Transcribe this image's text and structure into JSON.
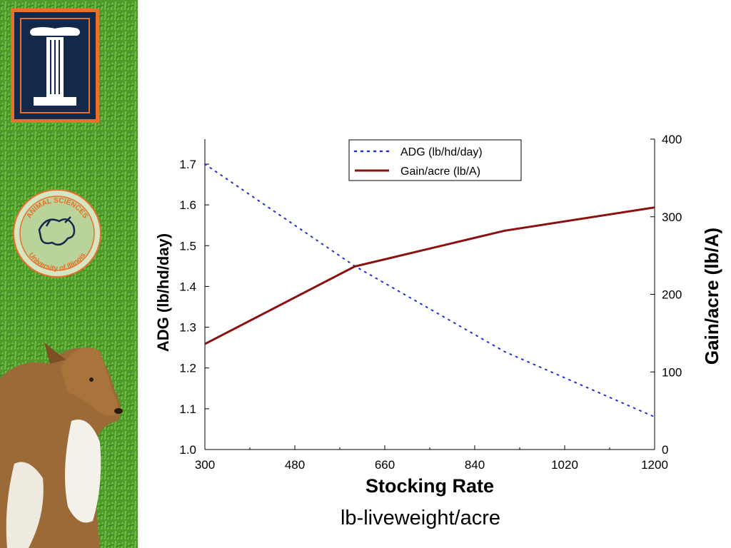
{
  "sidebar": {
    "logo_icon": "illinois-block-i-logo",
    "seal_icon": "animal-sciences-seal",
    "seal_text_top": "ANIMAL SCIENCES",
    "seal_text_bottom": "University of Illinois",
    "photo_icon": "dog-on-grass-photo"
  },
  "chart_data": {
    "type": "line",
    "x": [
      300,
      600,
      900,
      1200
    ],
    "xlim": [
      300,
      1200
    ],
    "xticks": [
      300,
      480,
      660,
      840,
      1020,
      1200
    ],
    "xlabel": "Stocking Rate",
    "xlabel_sub": "lb-liveweight/acre",
    "y_left": {
      "label": "ADG (lb/hd/day)",
      "lim": [
        1.0,
        1.76
      ],
      "ticks": [
        "1.0",
        "1.1",
        "1.2",
        "1.3",
        "1.4",
        "1.5",
        "1.6",
        "1.7"
      ]
    },
    "y_right": {
      "label": "Gain/acre (lb/A)",
      "lim": [
        0,
        400
      ],
      "ticks": [
        "0",
        "100",
        "200",
        "300",
        "400"
      ]
    },
    "series": [
      {
        "name": "ADG (lb/hd/day)",
        "axis": "left",
        "style": "dotted",
        "color": "#1f2fd6",
        "x": [
          300,
          600,
          900,
          1200
        ],
        "values": [
          1.7,
          1.45,
          1.24,
          1.08
        ]
      },
      {
        "name": "Gain/acre (lb/A)",
        "axis": "right",
        "style": "solid",
        "color": "#8b1010",
        "x": [
          300,
          600,
          900,
          1200
        ],
        "values": [
          136,
          236,
          282,
          312
        ]
      }
    ],
    "legend": "top-center",
    "grid": false
  }
}
